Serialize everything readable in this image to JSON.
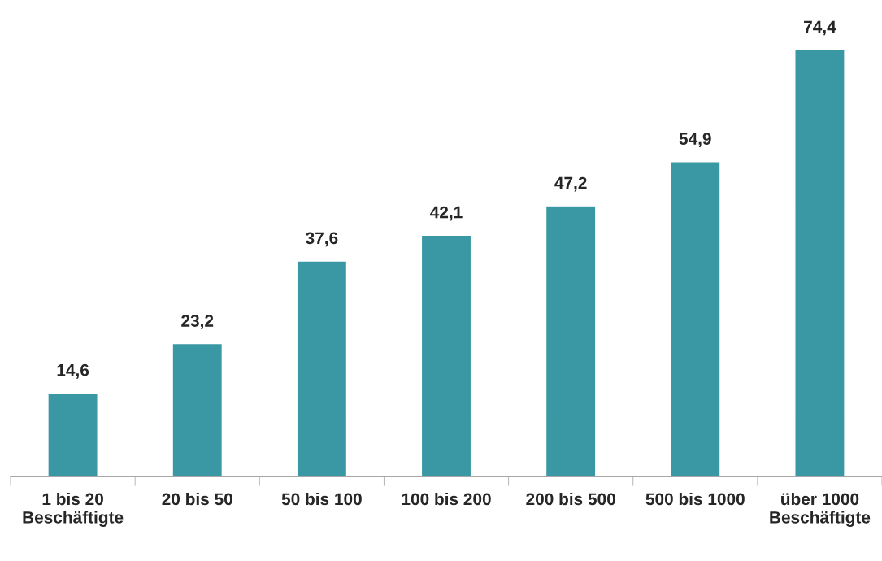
{
  "chart_data": {
    "type": "bar",
    "categories": [
      "1 bis 20\nBeschäftigte",
      "20 bis 50",
      "50 bis 100",
      "100 bis 200",
      "200 bis 500",
      "500 bis 1000",
      "über 1000\nBeschäftigte"
    ],
    "values": [
      14.6,
      23.2,
      37.6,
      42.1,
      47.2,
      54.9,
      74.4
    ],
    "color": "#3a98a5",
    "value_labels": [
      "14,6",
      "23,2",
      "37,6",
      "42,1",
      "47,2",
      "54,9",
      "74,4"
    ]
  }
}
